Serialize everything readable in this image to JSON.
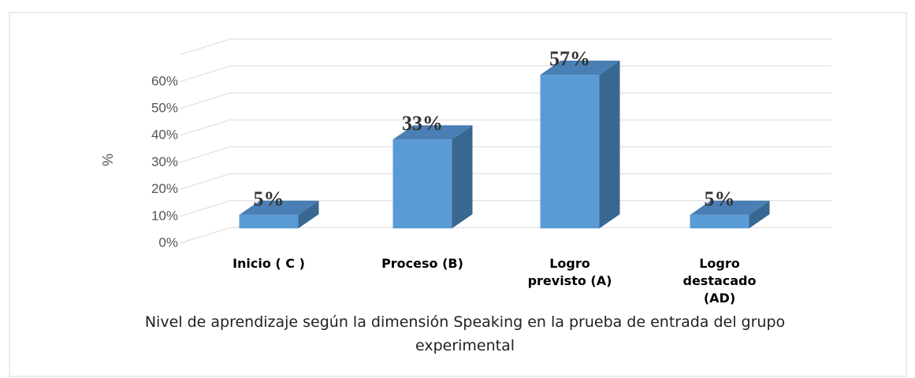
{
  "chart_data": {
    "type": "bar3d",
    "categories": [
      "Inicio ( C )",
      "Proceso (B)",
      "Logro previsto (A)",
      "Logro destacado (AD)"
    ],
    "values": [
      5,
      33,
      57,
      5
    ],
    "value_labels": [
      "5%",
      "33%",
      "57%",
      "5%"
    ],
    "color": "#5b9bd5",
    "ylim": [
      0,
      70
    ],
    "yticks": [
      {
        "value": 0,
        "label": "0%"
      },
      {
        "value": 10,
        "label": "10%"
      },
      {
        "value": 20,
        "label": "20%"
      },
      {
        "value": 30,
        "label": "30%"
      },
      {
        "value": 40,
        "label": "40%"
      },
      {
        "value": 50,
        "label": "50%"
      },
      {
        "value": 60,
        "label": "60%"
      }
    ],
    "ylabel": "%",
    "xlabel": "Nivel de aprendizaje según la dimensión Speaking en la prueba de entrada del grupo experimental",
    "grid": true
  }
}
